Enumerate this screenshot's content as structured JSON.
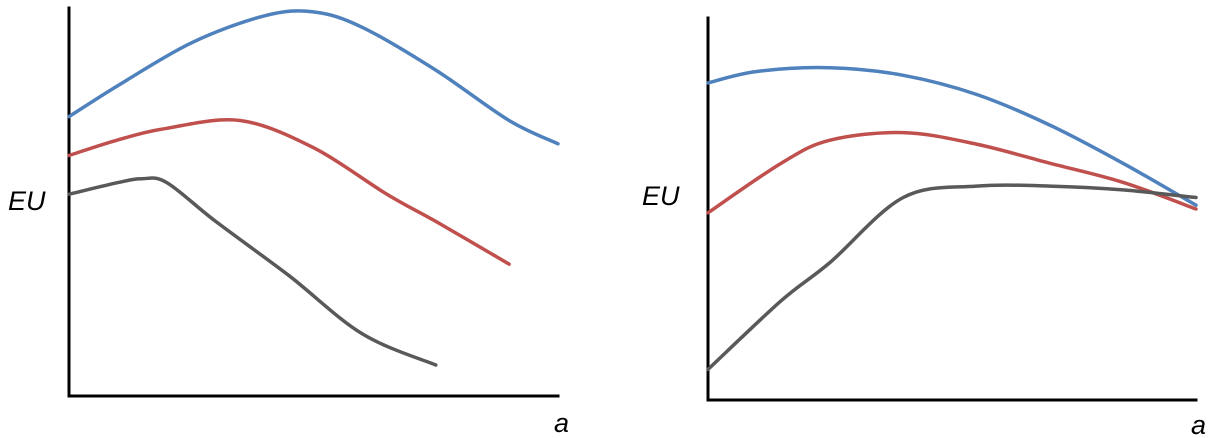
{
  "chart_data": [
    {
      "type": "line",
      "ylabel": "EU",
      "xlabel": "a",
      "xlim": [
        0,
        100
      ],
      "ylim": [
        0,
        100
      ],
      "grid": false,
      "legend": "none",
      "series": [
        {
          "color": "#4f81bd",
          "x": [
            0,
            10,
            25,
            40,
            50,
            60,
            75,
            90,
            100
          ],
          "y": [
            72,
            80,
            91,
            98,
            99,
            95,
            84,
            71,
            65
          ]
        },
        {
          "color": "#c0504d",
          "x": [
            0,
            10,
            20,
            35,
            50,
            65,
            75,
            90
          ],
          "y": [
            62,
            66,
            69,
            71,
            64,
            52,
            45,
            34
          ]
        },
        {
          "color": "#595959",
          "x": [
            0,
            10,
            15,
            20,
            30,
            45,
            60,
            75
          ],
          "y": [
            52,
            55,
            56,
            55,
            45,
            31,
            16,
            8
          ]
        }
      ]
    },
    {
      "type": "line",
      "ylabel": "EU",
      "xlabel": "a",
      "xlim": [
        0,
        100
      ],
      "ylim": [
        0,
        100
      ],
      "grid": false,
      "legend": "none",
      "series": [
        {
          "color": "#4f81bd",
          "x": [
            0,
            10,
            25,
            40,
            55,
            70,
            85,
            100
          ],
          "y": [
            83,
            86,
            87,
            85,
            80,
            72,
            62,
            51
          ]
        },
        {
          "color": "#c0504d",
          "x": [
            0,
            15,
            25,
            40,
            55,
            70,
            85,
            100
          ],
          "y": [
            49,
            62,
            68,
            70,
            67,
            62,
            57,
            50
          ]
        },
        {
          "color": "#595959",
          "x": [
            0,
            15,
            25,
            40,
            55,
            70,
            85,
            100
          ],
          "y": [
            8,
            26,
            36,
            53,
            56,
            56,
            55,
            53
          ]
        }
      ]
    }
  ]
}
